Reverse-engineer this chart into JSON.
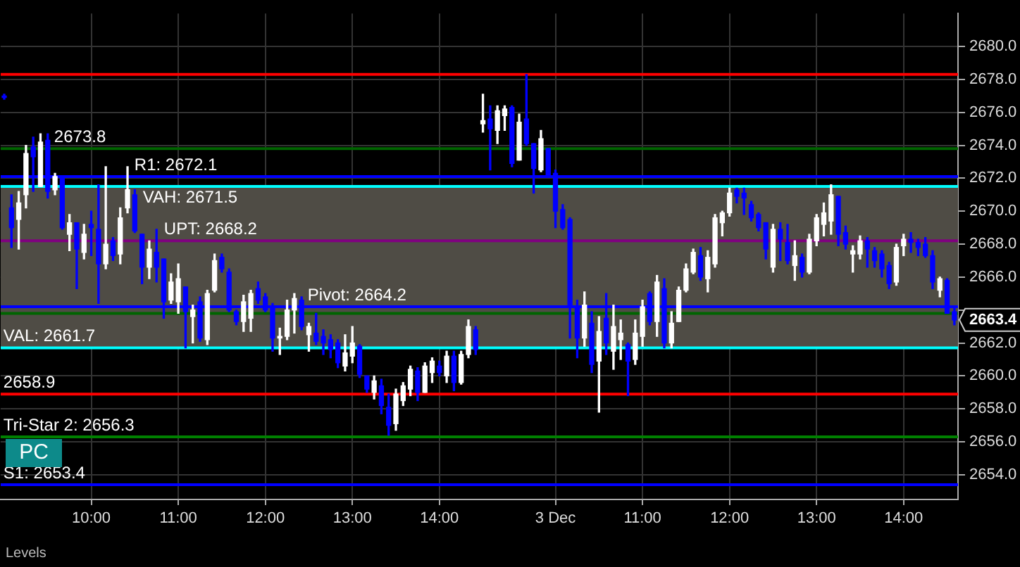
{
  "chart_data": {
    "type": "candlestick",
    "categories": [
      null,
      null,
      null,
      null,
      null,
      null,
      null,
      null,
      null,
      null,
      null,
      null,
      "10:00",
      null,
      null,
      null,
      null,
      null,
      null,
      null,
      null,
      null,
      null,
      null,
      "11:00",
      null,
      null,
      null,
      null,
      null,
      null,
      null,
      null,
      null,
      null,
      null,
      "12:00",
      null,
      null,
      null,
      null,
      null,
      null,
      null,
      null,
      null,
      null,
      null,
      "13:00",
      null,
      null,
      null,
      null,
      null,
      null,
      null,
      null,
      null,
      null,
      null,
      "14:00",
      null,
      null,
      null,
      null,
      null,
      null,
      null,
      null,
      null,
      null,
      null,
      null,
      null,
      null,
      null,
      "3 Dec",
      null,
      null,
      null,
      null,
      null,
      null,
      null,
      null,
      null,
      null,
      null,
      "11:00",
      null,
      null,
      null,
      null,
      null,
      null,
      null,
      null,
      null,
      null,
      null,
      "12:00",
      null,
      null,
      null,
      null,
      null,
      null,
      null,
      null,
      null,
      null,
      null,
      "13:00",
      null,
      null,
      null,
      null,
      null,
      null,
      null,
      null,
      null,
      null,
      null,
      "14:00",
      null,
      null,
      null,
      null,
      null,
      null,
      null
    ],
    "ohlc": [
      [
        2677.0,
        2677.1,
        2676.8,
        2676.9
      ],
      [
        2670.2,
        2671.0,
        2667.8,
        2669.0
      ],
      [
        2669.5,
        2671.2,
        2667.7,
        2670.5
      ],
      [
        2671.0,
        2674.0,
        2670.2,
        2673.5
      ],
      [
        2673.9,
        2674.5,
        2671.2,
        2673.3
      ],
      [
        2671.5,
        2674.7,
        2671.5,
        2674.2
      ],
      [
        2674.3,
        2674.7,
        2670.8,
        2671.2
      ],
      [
        2671.3,
        2672.3,
        2671.0,
        2672.1
      ],
      [
        2672.0,
        2672.1,
        2668.9,
        2669.0
      ],
      [
        2668.6,
        2669.8,
        2667.6,
        2669.3
      ],
      [
        2669.3,
        2669.3,
        2665.3,
        2667.7
      ],
      [
        2667.5,
        2669.2,
        2667.1,
        2668.6
      ],
      [
        2669.2,
        2670.0,
        2667.3,
        2669.0
      ],
      [
        2668.9,
        2671.6,
        2664.4,
        2666.8
      ],
      [
        2666.8,
        2672.7,
        2666.5,
        2668.0
      ],
      [
        2668.2,
        2668.4,
        2667.0,
        2667.3
      ],
      [
        2667.4,
        2670.2,
        2666.8,
        2669.6
      ],
      [
        2670.2,
        2672.7,
        2669.9,
        2671.3
      ],
      [
        2671.0,
        2671.3,
        2668.7,
        2668.8
      ],
      [
        2668.6,
        2668.6,
        2665.6,
        2666.6
      ],
      [
        2666.6,
        2668.2,
        2665.9,
        2667.7
      ],
      [
        2667.5,
        2668.9,
        2665.7,
        2666.6
      ],
      [
        2667.1,
        2667.1,
        2663.5,
        2664.5
      ],
      [
        2664.6,
        2666.2,
        2664.4,
        2665.7
      ],
      [
        2664.5,
        2666.8,
        2663.8,
        2665.9
      ],
      [
        2665.4,
        2665.4,
        2661.7,
        2663.9
      ],
      [
        2663.6,
        2664.3,
        2662.0,
        2664.0
      ],
      [
        2664.5,
        2664.8,
        2662.1,
        2662.3
      ],
      [
        2662.2,
        2665.2,
        2661.9,
        2665.0
      ],
      [
        2665.2,
        2667.4,
        2665.1,
        2667.0
      ],
      [
        2667.2,
        2667.4,
        2666.3,
        2666.5
      ],
      [
        2666.3,
        2666.5,
        2663.9,
        2664.0
      ],
      [
        2663.9,
        2664.0,
        2663.1,
        2663.3
      ],
      [
        2663.3,
        2664.9,
        2662.7,
        2664.5
      ],
      [
        2663.5,
        2665.2,
        2662.7,
        2665.0
      ],
      [
        2665.3,
        2665.7,
        2664.4,
        2664.6
      ],
      [
        2664.8,
        2665.0,
        2663.9,
        2664.0
      ],
      [
        2664.2,
        2664.4,
        2661.5,
        2662.3
      ],
      [
        2662.3,
        2662.9,
        2661.3,
        2662.4
      ],
      [
        2662.4,
        2664.6,
        2662.2,
        2664.0
      ],
      [
        2664.0,
        2665.0,
        2662.6,
        2664.7
      ],
      [
        2664.6,
        2664.8,
        2662.8,
        2663.0
      ],
      [
        2662.5,
        2663.2,
        2661.5,
        2663.0
      ],
      [
        2662.6,
        2663.8,
        2661.9,
        2662.1
      ],
      [
        2662.4,
        2662.8,
        2661.3,
        2662.0
      ],
      [
        2662.2,
        2662.5,
        2661.1,
        2661.6
      ],
      [
        2662.0,
        2662.2,
        2660.5,
        2660.8
      ],
      [
        2660.6,
        2662.5,
        2660.3,
        2661.4
      ],
      [
        2661.2,
        2663.0,
        2660.8,
        2662.0
      ],
      [
        2661.8,
        2661.9,
        2659.9,
        2660.1
      ],
      [
        2660.0,
        2660.0,
        2659.0,
        2659.2
      ],
      [
        2659.0,
        2660.0,
        2658.6,
        2659.7
      ],
      [
        2659.4,
        2659.8,
        2657.7,
        2658.2
      ],
      [
        2658.1,
        2658.9,
        2656.4,
        2657.0
      ],
      [
        2657.1,
        2659.2,
        2656.7,
        2658.9
      ],
      [
        2658.5,
        2659.6,
        2658.2,
        2659.4
      ],
      [
        2659.2,
        2660.6,
        2658.8,
        2660.4
      ],
      [
        2660.3,
        2660.5,
        2658.5,
        2659.0
      ],
      [
        2659.0,
        2660.8,
        2659.0,
        2660.6
      ],
      [
        2660.2,
        2661.1,
        2659.6,
        2660.9
      ],
      [
        2660.6,
        2660.9,
        2660.0,
        2660.2
      ],
      [
        2660.0,
        2661.5,
        2659.6,
        2661.2
      ],
      [
        2661.2,
        2661.5,
        2659.1,
        2659.6
      ],
      [
        2659.6,
        2661.5,
        2659.5,
        2661.3
      ],
      [
        2661.3,
        2663.4,
        2661.1,
        2663.0
      ],
      [
        2662.8,
        2663.0,
        2661.3,
        2661.6
      ],
      [
        2675.3,
        2677.1,
        2674.8,
        2675.5
      ],
      [
        2675.6,
        2676.4,
        2672.5,
        2675.0
      ],
      [
        2674.9,
        2676.4,
        2674.1,
        2676.1
      ],
      [
        2675.8,
        2676.4,
        2674.9,
        2676.2
      ],
      [
        2676.3,
        2676.4,
        2672.7,
        2672.9
      ],
      [
        2673.1,
        2675.9,
        2673.1,
        2675.4
      ],
      [
        2675.6,
        2678.3,
        2674.0,
        2674.1
      ],
      [
        2674.1,
        2674.1,
        2671.1,
        2672.6
      ],
      [
        2672.5,
        2674.9,
        2672.4,
        2674.4
      ],
      [
        2673.8,
        2673.8,
        2672.2,
        2672.2
      ],
      [
        2672.3,
        2672.5,
        2669.0,
        2670.0
      ],
      [
        2670.1,
        2670.4,
        2668.9,
        2669.0
      ],
      [
        2669.5,
        2669.6,
        2662.3,
        2664.2
      ],
      [
        2664.2,
        2664.6,
        2661.1,
        2662.3
      ],
      [
        2662.3,
        2665.1,
        2661.8,
        2664.3
      ],
      [
        2663.2,
        2663.9,
        2660.2,
        2660.7
      ],
      [
        2660.9,
        2663.6,
        2657.8,
        2662.7
      ],
      [
        2663.5,
        2665.0,
        2661.3,
        2662.0
      ],
      [
        2661.5,
        2664.3,
        2660.4,
        2663.0
      ],
      [
        2662.2,
        2663.4,
        2661.0,
        2662.6
      ],
      [
        2661.9,
        2662.0,
        2658.8,
        2660.9
      ],
      [
        2661.0,
        2663.4,
        2660.7,
        2662.6
      ],
      [
        2662.4,
        2664.6,
        2661.8,
        2664.2
      ],
      [
        2665.0,
        2665.1,
        2663.1,
        2663.3
      ],
      [
        2663.3,
        2666.1,
        2662.4,
        2665.7
      ],
      [
        2665.3,
        2665.9,
        2661.7,
        2662.0
      ],
      [
        2662.0,
        2663.9,
        2661.7,
        2663.2
      ],
      [
        2663.3,
        2665.4,
        2663.3,
        2665.2
      ],
      [
        2665.2,
        2666.8,
        2665.1,
        2666.5
      ],
      [
        2666.3,
        2667.7,
        2666.2,
        2667.5
      ],
      [
        2667.3,
        2667.8,
        2665.8,
        2666.0
      ],
      [
        2665.9,
        2667.6,
        2665.1,
        2667.2
      ],
      [
        2666.8,
        2669.8,
        2666.6,
        2669.6
      ],
      [
        2669.3,
        2670.0,
        2668.5,
        2669.9
      ],
      [
        2669.9,
        2671.4,
        2669.7,
        2671.1
      ],
      [
        2671.3,
        2671.4,
        2670.5,
        2670.9
      ],
      [
        2671.1,
        2671.4,
        2669.8,
        2670.8
      ],
      [
        2670.4,
        2670.6,
        2669.4,
        2669.6
      ],
      [
        2669.8,
        2669.9,
        2668.8,
        2669.0
      ],
      [
        2669.3,
        2669.3,
        2667.1,
        2667.7
      ],
      [
        2666.6,
        2669.2,
        2666.3,
        2668.9
      ],
      [
        2668.9,
        2669.3,
        2667.0,
        2668.3
      ],
      [
        2668.1,
        2669.2,
        2666.8,
        2667.0
      ],
      [
        2666.7,
        2668.2,
        2665.8,
        2667.3
      ],
      [
        2667.2,
        2667.4,
        2666.0,
        2666.3
      ],
      [
        2666.3,
        2668.6,
        2666.2,
        2668.3
      ],
      [
        2668.2,
        2669.8,
        2667.9,
        2669.6
      ],
      [
        2669.2,
        2670.5,
        2668.5,
        2669.9
      ],
      [
        2669.4,
        2671.6,
        2668.6,
        2671.0
      ],
      [
        2670.9,
        2670.9,
        2667.9,
        2668.6
      ],
      [
        2668.7,
        2669.1,
        2667.7,
        2668.0
      ],
      [
        2667.4,
        2667.9,
        2666.3,
        2667.6
      ],
      [
        2667.4,
        2668.5,
        2667.1,
        2668.2
      ],
      [
        2668.2,
        2668.4,
        2666.6,
        2667.7
      ],
      [
        2667.6,
        2667.8,
        2666.6,
        2667.0
      ],
      [
        2667.4,
        2667.6,
        2666.0,
        2666.5
      ],
      [
        2666.7,
        2666.9,
        2665.3,
        2665.6
      ],
      [
        2665.7,
        2668.0,
        2665.5,
        2667.8
      ],
      [
        2667.9,
        2668.6,
        2667.3,
        2668.3
      ],
      [
        2668.3,
        2668.7,
        2667.5,
        2668.1
      ],
      [
        2668.1,
        2668.3,
        2667.3,
        2667.8
      ],
      [
        2668.0,
        2668.4,
        2667.2,
        2667.3
      ],
      [
        2667.3,
        2667.6,
        2665.3,
        2665.7
      ],
      [
        2665.2,
        2666.0,
        2664.8,
        2665.9
      ],
      [
        2665.8,
        2665.9,
        2663.8,
        2663.8
      ],
      [
        2663.9,
        2664.1,
        2663.1,
        2663.4
      ]
    ],
    "colors": [
      "#0000ff",
      "#0000ff",
      "#ffffff",
      "#ffffff",
      "#0000ff",
      "#ffffff",
      "#0000ff",
      "#ffffff",
      "#0000ff",
      "#ffffff",
      "#0000ff",
      "#ffffff",
      "#0000ff",
      "#0000ff",
      "#ffffff",
      "#0000ff",
      "#ffffff",
      "#ffffff",
      "#0000ff",
      "#0000ff",
      "#ffffff",
      "#0000ff",
      "#0000ff",
      "#ffffff",
      "#ffffff",
      "#0000ff",
      "#ffffff",
      "#0000ff",
      "#ffffff",
      "#ffffff",
      "#0000ff",
      "#0000ff",
      "#0000ff",
      "#ffffff",
      "#ffffff",
      "#0000ff",
      "#0000ff",
      "#0000ff",
      "#ffffff",
      "#ffffff",
      "#ffffff",
      "#0000ff",
      "#ffffff",
      "#0000ff",
      "#0000ff",
      "#0000ff",
      "#0000ff",
      "#ffffff",
      "#ffffff",
      "#0000ff",
      "#0000ff",
      "#ffffff",
      "#0000ff",
      "#0000ff",
      "#ffffff",
      "#ffffff",
      "#ffffff",
      "#0000ff",
      "#ffffff",
      "#ffffff",
      "#0000ff",
      "#ffffff",
      "#0000ff",
      "#ffffff",
      "#ffffff",
      "#0000ff",
      "#ffffff",
      "#0000ff",
      "#ffffff",
      "#ffffff",
      "#0000ff",
      "#ffffff",
      "#0000ff",
      "#0000ff",
      "#ffffff",
      "#0000ff",
      "#0000ff",
      "#0000ff",
      "#0000ff",
      "#0000ff",
      "#ffffff",
      "#0000ff",
      "#ffffff",
      "#0000ff",
      "#ffffff",
      "#ffffff",
      "#0000ff",
      "#ffffff",
      "#ffffff",
      "#0000ff",
      "#ffffff",
      "#0000ff",
      "#ffffff",
      "#ffffff",
      "#ffffff",
      "#ffffff",
      "#0000ff",
      "#ffffff",
      "#ffffff",
      "#ffffff",
      "#ffffff",
      "#0000ff",
      "#0000ff",
      "#0000ff",
      "#0000ff",
      "#0000ff",
      "#ffffff",
      "#0000ff",
      "#0000ff",
      "#ffffff",
      "#0000ff",
      "#ffffff",
      "#ffffff",
      "#ffffff",
      "#ffffff",
      "#0000ff",
      "#0000ff",
      "#ffffff",
      "#ffffff",
      "#0000ff",
      "#0000ff",
      "#0000ff",
      "#0000ff",
      "#ffffff",
      "#ffffff",
      "#0000ff",
      "#0000ff",
      "#0000ff",
      "#0000ff",
      "#ffffff",
      "#0000ff",
      "#0000ff"
    ],
    "ylim": [
      2652.5,
      2682
    ],
    "yticks": [
      {
        "value": 2654,
        "label": "2654.0"
      },
      {
        "value": 2656,
        "label": "2656.0"
      },
      {
        "value": 2658,
        "label": "2658.0"
      },
      {
        "value": 2660,
        "label": "2660.0"
      },
      {
        "value": 2662,
        "label": "2662.0"
      },
      {
        "value": 2664,
        "label": null
      },
      {
        "value": 2666,
        "label": "2666.0"
      },
      {
        "value": 2668,
        "label": "2668.0"
      },
      {
        "value": 2670,
        "label": "2670.0"
      },
      {
        "value": 2672,
        "label": "2672.0"
      },
      {
        "value": 2674,
        "label": "2674.0"
      },
      {
        "value": 2676,
        "label": "2676.0"
      },
      {
        "value": 2678,
        "label": "2678.0"
      },
      {
        "value": 2680,
        "label": "2680.0"
      }
    ],
    "grid": true,
    "bands": [
      {
        "axis": "y",
        "from": 2661.7,
        "to": 2671.5,
        "color": "#4f4c45"
      }
    ],
    "ref_lines": [
      {
        "axis": "y",
        "value": 2672.1,
        "label": "R1: 2672.1",
        "color": "#0000ff"
      },
      {
        "axis": "y",
        "value": 2671.5,
        "label": "VAH: 2671.5",
        "color": "#00ffff"
      },
      {
        "axis": "y",
        "value": 2668.2,
        "label": "UPT: 2668.2",
        "color": "#800080"
      },
      {
        "axis": "y",
        "value": 2664.2,
        "label": "Pivot: 2664.2",
        "color": "#0000ff"
      },
      {
        "axis": "y",
        "value": 2661.7,
        "label": "VAL: 2661.7",
        "color": "#00ffff"
      },
      {
        "axis": "y",
        "value": 2656.3,
        "label": "Tri-Star 2: 2656.3",
        "color": "#008000"
      },
      {
        "axis": "y",
        "value": 2653.4,
        "label": "S1: 2653.4",
        "color": "#0000ff"
      },
      {
        "axis": "y",
        "value": 2673.8,
        "label": "2673.8",
        "color": "#006400"
      },
      {
        "axis": "y",
        "value": 2678.3,
        "color": "#ff0000"
      },
      {
        "axis": "y",
        "value": 2658.9,
        "label": "2658.9",
        "color": "#ff0000"
      },
      {
        "axis": "y",
        "value": 2663.8,
        "color": "#006400"
      }
    ],
    "annotations": [
      "2663.4",
      "PC",
      "Levels"
    ]
  }
}
